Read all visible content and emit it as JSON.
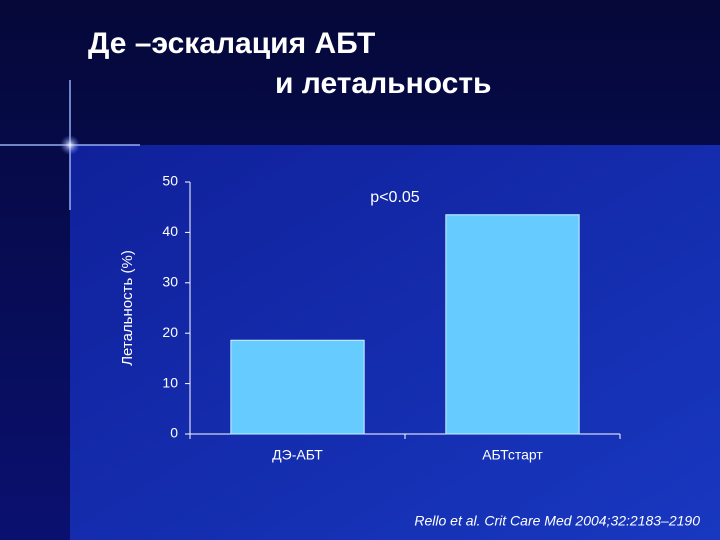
{
  "chart_data": {
    "type": "bar",
    "title_lines": [
      "Де –эскалация АБТ",
      "и летальность"
    ],
    "y_label": "Летальность (%)",
    "annotation": "p<0.05",
    "source": "Rello et al. Crit Care Med 2004;32:2183–2190",
    "categories": [
      "ДЭ-АБТ",
      "АБТстарт"
    ],
    "values": [
      18.6,
      43.5
    ],
    "color": "#66ccff",
    "ylim": [
      0,
      50
    ],
    "yticks": [
      0,
      10,
      20,
      30,
      40,
      50
    ],
    "grid": false
  }
}
